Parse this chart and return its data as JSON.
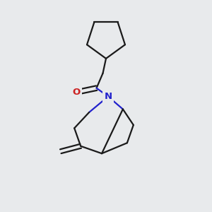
{
  "background_color": "#e8eaec",
  "bond_color": "#1a1a1a",
  "nitrogen_color": "#2222cc",
  "oxygen_color": "#cc2222",
  "line_width": 1.6,
  "figsize": [
    3.0,
    3.0
  ],
  "dpi": 100
}
